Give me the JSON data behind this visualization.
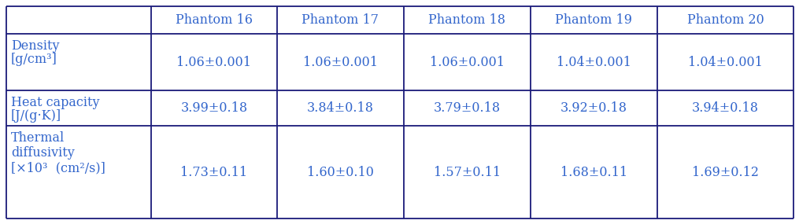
{
  "col_headers": [
    "",
    "Phantom 16",
    "Phantom 17",
    "Phantom 18",
    "Phantom 19",
    "Phantom 20"
  ],
  "row_label_line1": [
    "Density",
    "Heat capacity",
    "Thermal"
  ],
  "row_label_line2": [
    "[g/cm³]",
    "[J/(g·K)]",
    "diffusivity"
  ],
  "row_label_line3": [
    "",
    "",
    "[×10³  (cm²/s)]"
  ],
  "data": [
    [
      "1.06±0.001",
      "1.06±0.001",
      "1.06±0.001",
      "1.04±0.001",
      "1.04±0.001"
    ],
    [
      "3.99±0.18",
      "3.84±0.18",
      "3.79±0.18",
      "3.92±0.18",
      "3.94±0.18"
    ],
    [
      "1.73±0.11",
      "1.60±0.10",
      "1.57±0.11",
      "1.68±0.11",
      "1.69±0.12"
    ]
  ],
  "header_color": "#3366CC",
  "label_color": "#3366CC",
  "data_color": "#3366CC",
  "border_color": "#1A1A7A",
  "bg_color": "#FFFFFF",
  "font_size": 11.5
}
